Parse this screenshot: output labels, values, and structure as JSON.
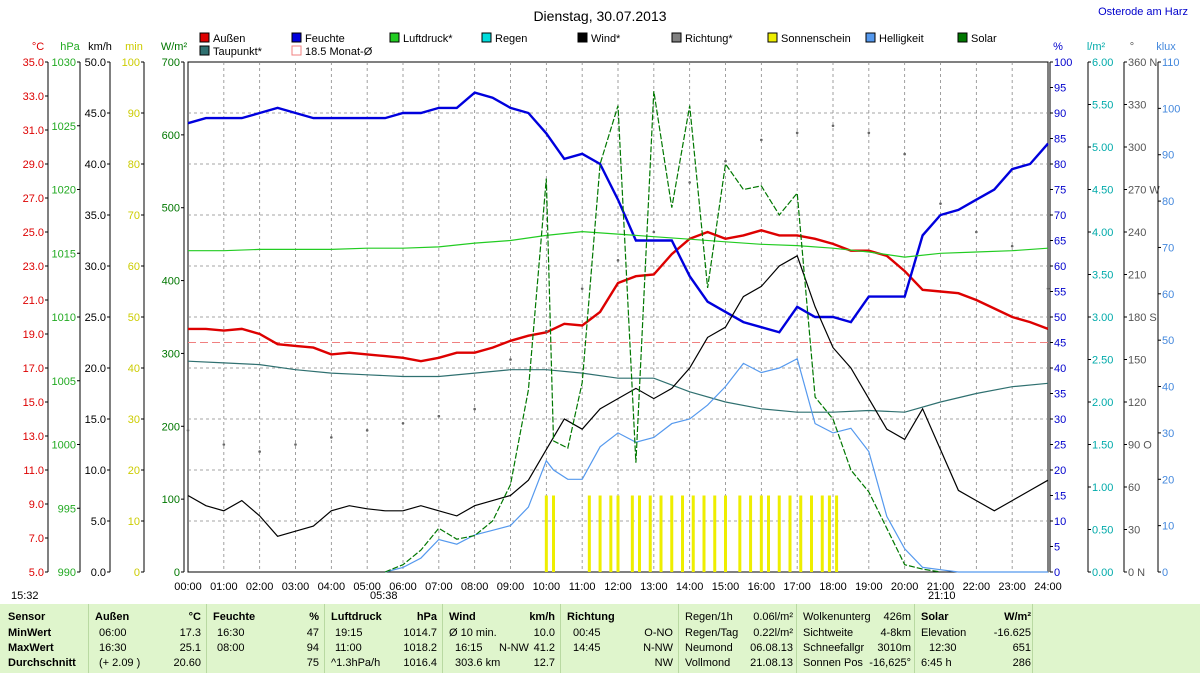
{
  "title": "Dienstag, 30.07.2013",
  "location": "Osterode am Harz",
  "timestamp": "15:32",
  "sunrise": "05:38",
  "sunset": "21:10",
  "legend": [
    {
      "label": "Außen",
      "color": "#dd0000"
    },
    {
      "label": "Taupunkt*",
      "color": "#2f7070"
    },
    {
      "label": "Feuchte",
      "color": "#0000dd"
    },
    {
      "label": "18.5 Monat-Ø",
      "color": "#f08080"
    },
    {
      "label": "Luftdruck*",
      "color": "#22cc22"
    },
    {
      "label": "Regen",
      "color": "#00dddd"
    },
    {
      "label": "Wind*",
      "color": "#000000"
    },
    {
      "label": "Richtung*",
      "color": "#808080"
    },
    {
      "label": "Sonnenschein",
      "color": "#eeee00"
    },
    {
      "label": "Helligkeit",
      "color": "#5599ee"
    },
    {
      "label": "Solar",
      "color": "#007700"
    }
  ],
  "axes_left": [
    {
      "unit": "°C",
      "color": "#dd0000",
      "ticks": [
        "35.0",
        "33.0",
        "31.0",
        "29.0",
        "27.0",
        "25.0",
        "23.0",
        "21.0",
        "19.0",
        "17.0",
        "15.0",
        "13.0",
        "11.0",
        "9.0",
        "7.0",
        "5.0"
      ]
    },
    {
      "unit": "hPa",
      "color": "#22aa22",
      "ticks": [
        "1030",
        "1025",
        "1020",
        "1015",
        "1010",
        "1005",
        "1000",
        "995",
        "990"
      ]
    },
    {
      "unit": "km/h",
      "color": "#000000",
      "ticks": [
        "50.0",
        "45.0",
        "40.0",
        "35.0",
        "30.0",
        "25.0",
        "20.0",
        "15.0",
        "10.0",
        "5.0",
        "0.0"
      ]
    },
    {
      "unit": "min",
      "color": "#cccc00",
      "ticks": [
        "100",
        "90",
        "80",
        "70",
        "60",
        "50",
        "40",
        "30",
        "20",
        "10",
        "0"
      ]
    },
    {
      "unit": "W/m²",
      "color": "#007700",
      "ticks": [
        "700",
        "600",
        "500",
        "400",
        "300",
        "200",
        "100",
        "0"
      ]
    }
  ],
  "axes_right": [
    {
      "unit": "%",
      "color": "#0000cc",
      "ticks": [
        "100",
        "95",
        "90",
        "85",
        "80",
        "75",
        "70",
        "65",
        "60",
        "55",
        "50",
        "45",
        "40",
        "35",
        "30",
        "25",
        "20",
        "15",
        "10",
        "5",
        "0"
      ]
    },
    {
      "unit": "l/m²",
      "color": "#00aaaa",
      "ticks": [
        "6.00",
        "5.50",
        "5.00",
        "4.50",
        "4.00",
        "3.50",
        "3.00",
        "2.50",
        "2.00",
        "1.50",
        "1.00",
        "0.50",
        "0.00"
      ]
    },
    {
      "unit": "°",
      "color": "#555555",
      "ticks": [
        "360 N",
        "330",
        "300",
        "270 W",
        "240",
        "210",
        "180 S",
        "150",
        "120",
        "90 O",
        "60",
        "30",
        "0 N"
      ]
    },
    {
      "unit": "klux",
      "color": "#4488dd",
      "ticks": [
        "110",
        "100",
        "90",
        "80",
        "70",
        "60",
        "50",
        "40",
        "30",
        "20",
        "10",
        "0"
      ]
    }
  ],
  "chart_data": {
    "type": "line",
    "title": "Dienstag, 30.07.2013",
    "x_unit": "hour",
    "xlim": [
      0,
      24
    ],
    "x_ticks": [
      "00:00",
      "01:00",
      "02:00",
      "03:00",
      "04:00",
      "05:00",
      "06:00",
      "07:00",
      "08:00",
      "09:00",
      "10:00",
      "11:00",
      "12:00",
      "13:00",
      "14:00",
      "15:00",
      "16:00",
      "17:00",
      "18:00",
      "19:00",
      "20:00",
      "21:00",
      "22:00",
      "23:00",
      "24:00"
    ],
    "grid": true,
    "reference_lines": [
      {
        "name": "18.5 Monat-Ø",
        "axis": "temp",
        "value": 18.5
      }
    ],
    "series": [
      {
        "name": "Außen",
        "axis": "temp",
        "ylim": [
          5,
          35
        ],
        "x": [
          0,
          0.5,
          1,
          1.5,
          2,
          2.5,
          3,
          3.5,
          4,
          4.5,
          5,
          5.5,
          6,
          6.5,
          7,
          7.5,
          8,
          8.5,
          9,
          9.5,
          10,
          10.5,
          11,
          11.5,
          12,
          12.5,
          13,
          13.5,
          14,
          14.5,
          15,
          15.5,
          16,
          16.5,
          17,
          17.5,
          18,
          18.5,
          19,
          19.5,
          20,
          20.5,
          21,
          21.5,
          22,
          22.5,
          23,
          23.5,
          24
        ],
        "values": [
          19.3,
          19.3,
          19.2,
          19.3,
          19.0,
          18.4,
          18.3,
          18.2,
          17.8,
          17.9,
          17.8,
          17.7,
          17.6,
          17.4,
          17.6,
          17.9,
          17.9,
          18.2,
          18.6,
          18.9,
          19.1,
          19.6,
          19.5,
          20.3,
          22.0,
          22.4,
          22.5,
          23.7,
          24.6,
          25.0,
          24.6,
          24.8,
          25.1,
          24.8,
          24.8,
          24.6,
          24.3,
          23.9,
          23.9,
          23.6,
          22.7,
          21.6,
          21.5,
          21.4,
          21.0,
          20.5,
          20.0,
          19.7,
          19.3
        ]
      },
      {
        "name": "Taupunkt*",
        "axis": "temp",
        "ylim": [
          5,
          35
        ],
        "x": [
          0,
          1,
          2,
          3,
          4,
          5,
          6,
          7,
          8,
          9,
          10,
          11,
          12,
          13,
          14,
          15,
          16,
          17,
          18,
          19,
          20,
          21,
          22,
          23,
          24
        ],
        "values": [
          17.4,
          17.3,
          17.2,
          16.9,
          16.7,
          16.6,
          16.5,
          16.5,
          16.7,
          16.9,
          16.9,
          16.7,
          16.4,
          16.4,
          15.6,
          15.0,
          14.6,
          14.4,
          14.4,
          14.5,
          14.4,
          15.0,
          15.5,
          15.9,
          16.1
        ]
      },
      {
        "name": "Feuchte",
        "axis": "humidity",
        "ylim": [
          0,
          100
        ],
        "x": [
          0,
          0.5,
          1,
          1.5,
          2,
          2.5,
          3,
          3.5,
          4,
          4.5,
          5,
          5.5,
          6,
          6.5,
          7,
          7.5,
          8,
          8.5,
          9,
          9.5,
          10,
          10.5,
          11,
          11.5,
          12,
          12.5,
          13,
          13.5,
          14,
          14.5,
          15,
          15.5,
          16,
          16.5,
          17,
          17.5,
          18,
          18.5,
          19,
          19.5,
          20,
          20.5,
          21,
          21.5,
          22,
          22.5,
          23,
          23.5,
          24
        ],
        "values": [
          88,
          89,
          89,
          89,
          90,
          91,
          90,
          89,
          89,
          89,
          89,
          89,
          90,
          90,
          91,
          91,
          94,
          93,
          91,
          90,
          86,
          81,
          82,
          80,
          73,
          65,
          65,
          65,
          58,
          53,
          51,
          49,
          48,
          47,
          52,
          50,
          50,
          49,
          54,
          54,
          54,
          66,
          70,
          71,
          73,
          75,
          79,
          80,
          84
        ]
      },
      {
        "name": "Luftdruck*",
        "axis": "pressure",
        "ylim": [
          990,
          1030
        ],
        "x": [
          0,
          1,
          2,
          3,
          4,
          5,
          6,
          7,
          8,
          9,
          10,
          11,
          12,
          13,
          14,
          15,
          16,
          17,
          18,
          19,
          20,
          21,
          22,
          23,
          24
        ],
        "values": [
          1015.2,
          1015.2,
          1015.3,
          1015.3,
          1015.3,
          1015.4,
          1015.4,
          1015.5,
          1015.8,
          1016.0,
          1016.4,
          1016.7,
          1016.5,
          1016.3,
          1016.1,
          1015.9,
          1015.7,
          1015.6,
          1015.4,
          1015.1,
          1014.7,
          1015.0,
          1015.1,
          1015.2,
          1015.4
        ]
      },
      {
        "name": "Wind*",
        "axis": "wind",
        "ylim": [
          0,
          50
        ],
        "x": [
          0,
          0.5,
          1,
          1.5,
          2,
          2.5,
          3,
          3.5,
          4,
          4.5,
          5,
          5.5,
          6,
          6.5,
          7,
          7.5,
          8,
          8.5,
          9,
          9.5,
          10,
          10.5,
          11,
          11.5,
          12,
          12.5,
          13,
          13.5,
          14,
          14.5,
          15,
          15.5,
          16,
          16.5,
          17,
          17.5,
          18,
          18.5,
          19,
          19.5,
          20,
          20.5,
          21,
          21.5,
          22,
          22.5,
          23,
          23.5,
          24
        ],
        "values": [
          7.5,
          6.5,
          6.0,
          7.0,
          5.5,
          3.5,
          4.0,
          4.5,
          6.0,
          6.5,
          6.2,
          6.0,
          6.0,
          6.5,
          6.0,
          5.5,
          6.5,
          7.0,
          7.5,
          9.0,
          12,
          15,
          14,
          16,
          17,
          18,
          17,
          18,
          20,
          23,
          24,
          27,
          28,
          30,
          31,
          26,
          22,
          20,
          17,
          14,
          13,
          16,
          12,
          8,
          7,
          6,
          7,
          8,
          9
        ]
      },
      {
        "name": "Helligkeit",
        "axis": "klux",
        "ylim": [
          0,
          110
        ],
        "x": [
          5.5,
          6,
          6.5,
          7,
          7.5,
          8,
          8.5,
          9,
          9.5,
          10,
          10.2,
          10.6,
          11,
          11.5,
          12,
          12.5,
          13,
          13.5,
          14,
          14.5,
          15,
          15.5,
          16,
          16.5,
          17,
          17.5,
          18,
          18.5,
          19,
          19.5,
          20,
          20.5,
          21,
          21.5,
          22,
          22.5,
          23,
          23.5,
          24
        ],
        "values": [
          0,
          1,
          3,
          7,
          6,
          8,
          9,
          10,
          14,
          24,
          22,
          20,
          20,
          27,
          30,
          28,
          29,
          32,
          33,
          36,
          40,
          45,
          43,
          44,
          46,
          32,
          30,
          31,
          26,
          12,
          5,
          1,
          0.5,
          0,
          0,
          0,
          0,
          0,
          0
        ]
      },
      {
        "name": "Solar",
        "axis": "solar",
        "ylim": [
          0,
          700
        ],
        "x": [
          5.5,
          6,
          6.5,
          7,
          7.5,
          8,
          8.5,
          9,
          9.5,
          10,
          10.2,
          10.6,
          11,
          11.5,
          12,
          12.5,
          13,
          13.5,
          14,
          14.5,
          15,
          15.5,
          16,
          16.5,
          17,
          17.5,
          18,
          18.5,
          19,
          19.5,
          20,
          20.5,
          21
        ],
        "values": [
          0,
          10,
          30,
          60,
          45,
          50,
          70,
          120,
          250,
          540,
          180,
          170,
          260,
          560,
          640,
          150,
          660,
          500,
          640,
          390,
          560,
          525,
          530,
          490,
          520,
          240,
          210,
          140,
          110,
          60,
          10,
          4,
          0
        ]
      },
      {
        "name": "Sonnenschein",
        "axis": "minutes",
        "ylim": [
          0,
          100
        ],
        "x": [
          10.0,
          10.2,
          11.2,
          11.5,
          11.8,
          12.0,
          12.4,
          12.6,
          12.9,
          13.2,
          13.5,
          13.8,
          14.1,
          14.4,
          14.7,
          15.0,
          15.4,
          15.7,
          16.0,
          16.2,
          16.5,
          16.8,
          17.1,
          17.4,
          17.7,
          17.9,
          18.1
        ],
        "values": [
          15,
          15,
          15,
          15,
          15,
          15,
          15,
          15,
          15,
          15,
          15,
          15,
          15,
          15,
          15,
          15,
          15,
          15,
          15,
          15,
          15,
          15,
          15,
          15,
          15,
          15,
          15
        ]
      },
      {
        "name": "Richtung*",
        "axis": "direction",
        "ylim": [
          0,
          360
        ],
        "x": [
          0,
          1,
          2,
          3,
          4,
          5,
          6,
          7,
          8,
          9,
          10,
          11,
          12,
          13,
          14,
          15,
          16,
          17,
          18,
          19,
          20,
          21,
          22,
          23,
          24
        ],
        "values": [
          100,
          90,
          85,
          90,
          95,
          100,
          105,
          110,
          115,
          150,
          170,
          200,
          220,
          240,
          275,
          290,
          305,
          310,
          315,
          310,
          295,
          260,
          240,
          230,
          200
        ]
      }
    ]
  },
  "stats": {
    "sensor": {
      "head": "Sensor",
      "rows": [
        "MinWert",
        "MaxWert",
        "Durchschnitt"
      ]
    },
    "aussen": {
      "head": "Außen",
      "unit": "°C",
      "rows": [
        [
          "06:00",
          "17.3"
        ],
        [
          "16:30",
          "25.1"
        ],
        [
          "(+ 2.09 )",
          "20.60"
        ]
      ]
    },
    "feuchte": {
      "head": "Feuchte",
      "unit": "%",
      "rows": [
        [
          "16:30",
          "47"
        ],
        [
          "08:00",
          "94"
        ],
        [
          "",
          "75"
        ]
      ]
    },
    "luftdruck": {
      "head": "Luftdruck",
      "unit": "hPa",
      "rows": [
        [
          "19:15",
          "1014.7"
        ],
        [
          "11:00",
          "1018.2"
        ],
        [
          "^1.3hPa/h",
          "1016.4"
        ]
      ]
    },
    "wind": {
      "head": "Wind",
      "unit": "km/h",
      "rows": [
        [
          "Ø 10 min.",
          "",
          "10.0"
        ],
        [
          "16:15",
          "N-NW",
          "41.2"
        ],
        [
          "303.6 km",
          "",
          "12.7"
        ]
      ]
    },
    "richtung": {
      "head": "Richtung",
      "rows": [
        [
          "00:45",
          "O-NO"
        ],
        [
          "14:45",
          "N-NW"
        ],
        [
          "",
          "NW"
        ]
      ]
    },
    "regen": {
      "rows": [
        [
          "Regen/1h",
          "0.06l/m²"
        ],
        [
          "Regen/Tag",
          "0.22l/m²"
        ],
        [
          "Neumond",
          "06.08.13"
        ],
        [
          "Vollmond",
          "21.08.13"
        ]
      ]
    },
    "wolken": {
      "rows": [
        [
          "Wolkenunterg",
          "426m"
        ],
        [
          "Sichtweite",
          "4-8km"
        ],
        [
          "Schneefallgr",
          "3010m"
        ],
        [
          "Sonnen Pos",
          "-16,625°"
        ]
      ]
    },
    "solar": {
      "head": "Solar",
      "unit": "W/m²",
      "rows": [
        [
          "Elevation",
          "-16.625"
        ],
        [
          "12:30",
          "651"
        ],
        [
          "6:45 h",
          "286"
        ]
      ]
    }
  }
}
